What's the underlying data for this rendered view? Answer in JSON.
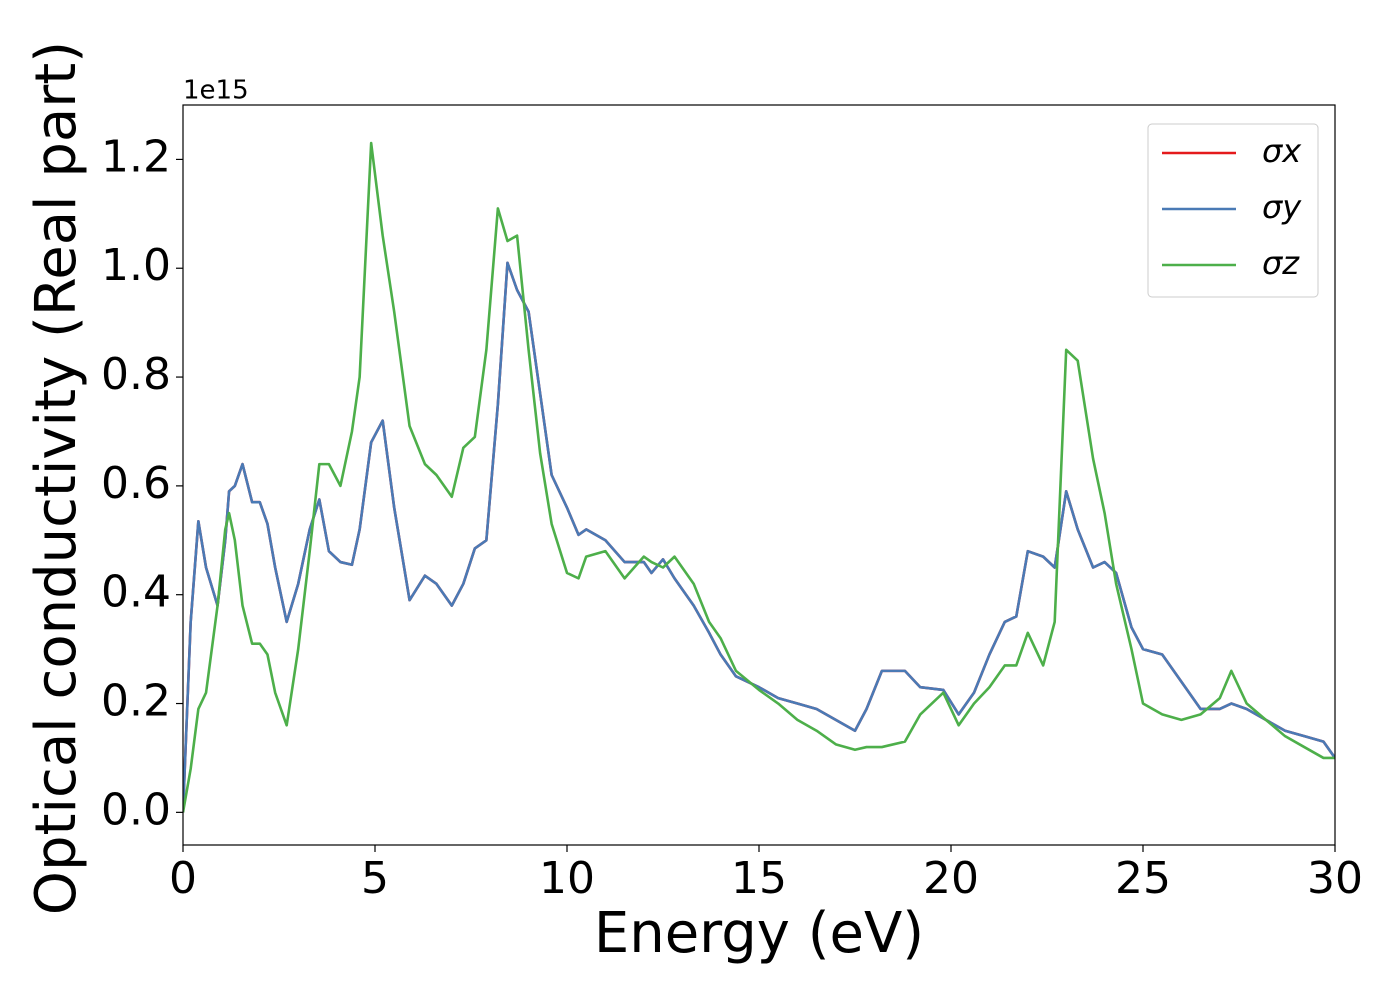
{
  "chart_data": {
    "type": "line",
    "xlabel": "Energy (eV)",
    "ylabel": "Optical conductivity (Real part)",
    "y_offset_label": "1e15",
    "xlim": [
      0,
      30
    ],
    "xticks": [
      0,
      5,
      10,
      15,
      20,
      25,
      30
    ],
    "ylim": [
      -0.06,
      1.3
    ],
    "yticks": [
      {
        "value": 0,
        "label": "0.0"
      },
      0.2,
      0.4,
      0.6,
      0.8,
      {
        "value": 1,
        "label": "1.0"
      },
      1.2
    ],
    "legend": "upper right",
    "x": [
      0,
      0.2,
      0.4,
      0.6,
      0.9,
      1.1,
      1.2,
      1.35,
      1.55,
      1.8,
      2.0,
      2.2,
      2.4,
      2.7,
      3.0,
      3.3,
      3.55,
      3.8,
      4.1,
      4.4,
      4.6,
      4.9,
      5.2,
      5.5,
      5.9,
      6.3,
      6.6,
      7.0,
      7.3,
      7.6,
      7.9,
      8.2,
      8.45,
      8.7,
      9.0,
      9.3,
      9.6,
      10.0,
      10.3,
      10.5,
      11.0,
      11.5,
      12.0,
      12.2,
      12.5,
      12.8,
      13.3,
      13.7,
      14.0,
      14.4,
      15.0,
      15.5,
      16.0,
      16.5,
      17.0,
      17.5,
      17.8,
      18.2,
      18.8,
      19.2,
      19.8,
      20.2,
      20.6,
      21.0,
      21.4,
      21.7,
      22.0,
      22.4,
      22.7,
      23.0,
      23.3,
      23.7,
      24.0,
      24.3,
      24.7,
      25.0,
      25.5,
      26.0,
      26.5,
      27.0,
      27.3,
      27.7,
      28.2,
      28.7,
      29.2,
      29.7,
      30.0
    ],
    "series": [
      {
        "name": "σx",
        "color": "#e41a1c",
        "values": [
          0,
          0.35,
          0.535,
          0.45,
          0.38,
          0.5,
          0.59,
          0.6,
          0.64,
          0.57,
          0.57,
          0.53,
          0.45,
          0.35,
          0.42,
          0.52,
          0.575,
          0.48,
          0.46,
          0.455,
          0.52,
          0.68,
          0.72,
          0.56,
          0.39,
          0.435,
          0.42,
          0.38,
          0.42,
          0.485,
          0.5,
          0.75,
          1.01,
          0.96,
          0.92,
          0.77,
          0.62,
          0.56,
          0.51,
          0.52,
          0.5,
          0.46,
          0.46,
          0.44,
          0.465,
          0.43,
          0.38,
          0.33,
          0.29,
          0.25,
          0.23,
          0.21,
          0.2,
          0.19,
          0.17,
          0.15,
          0.19,
          0.26,
          0.26,
          0.23,
          0.225,
          0.18,
          0.22,
          0.29,
          0.35,
          0.36,
          0.48,
          0.47,
          0.45,
          0.59,
          0.52,
          0.45,
          0.46,
          0.44,
          0.34,
          0.3,
          0.29,
          0.24,
          0.19,
          0.19,
          0.2,
          0.19,
          0.17,
          0.15,
          0.14,
          0.13,
          0.1
        ]
      },
      {
        "name": "σy",
        "color": "#4a7ab5",
        "values": [
          0,
          0.35,
          0.535,
          0.45,
          0.38,
          0.5,
          0.59,
          0.6,
          0.64,
          0.57,
          0.57,
          0.53,
          0.45,
          0.35,
          0.42,
          0.52,
          0.575,
          0.48,
          0.46,
          0.455,
          0.52,
          0.68,
          0.72,
          0.56,
          0.39,
          0.435,
          0.42,
          0.38,
          0.42,
          0.485,
          0.5,
          0.75,
          1.01,
          0.96,
          0.92,
          0.77,
          0.62,
          0.56,
          0.51,
          0.52,
          0.5,
          0.46,
          0.46,
          0.44,
          0.465,
          0.43,
          0.38,
          0.33,
          0.29,
          0.25,
          0.23,
          0.21,
          0.2,
          0.19,
          0.17,
          0.15,
          0.19,
          0.26,
          0.26,
          0.23,
          0.225,
          0.18,
          0.22,
          0.29,
          0.35,
          0.36,
          0.48,
          0.47,
          0.45,
          0.59,
          0.52,
          0.45,
          0.46,
          0.44,
          0.34,
          0.3,
          0.29,
          0.24,
          0.19,
          0.19,
          0.2,
          0.19,
          0.17,
          0.15,
          0.14,
          0.13,
          0.1
        ]
      },
      {
        "name": "σz",
        "color": "#4daf4a",
        "values": [
          0,
          0.08,
          0.19,
          0.22,
          0.38,
          0.52,
          0.55,
          0.5,
          0.38,
          0.31,
          0.31,
          0.29,
          0.22,
          0.16,
          0.3,
          0.48,
          0.64,
          0.64,
          0.6,
          0.7,
          0.8,
          1.23,
          1.06,
          0.92,
          0.71,
          0.64,
          0.62,
          0.58,
          0.67,
          0.69,
          0.85,
          1.11,
          1.05,
          1.06,
          0.85,
          0.66,
          0.53,
          0.44,
          0.43,
          0.47,
          0.48,
          0.43,
          0.47,
          0.46,
          0.45,
          0.47,
          0.42,
          0.35,
          0.32,
          0.26,
          0.225,
          0.2,
          0.17,
          0.15,
          0.125,
          0.115,
          0.12,
          0.12,
          0.13,
          0.18,
          0.22,
          0.16,
          0.2,
          0.23,
          0.27,
          0.27,
          0.33,
          0.27,
          0.35,
          0.85,
          0.83,
          0.65,
          0.55,
          0.42,
          0.3,
          0.2,
          0.18,
          0.17,
          0.18,
          0.21,
          0.26,
          0.2,
          0.17,
          0.14,
          0.12,
          0.1,
          0.1
        ]
      }
    ]
  }
}
